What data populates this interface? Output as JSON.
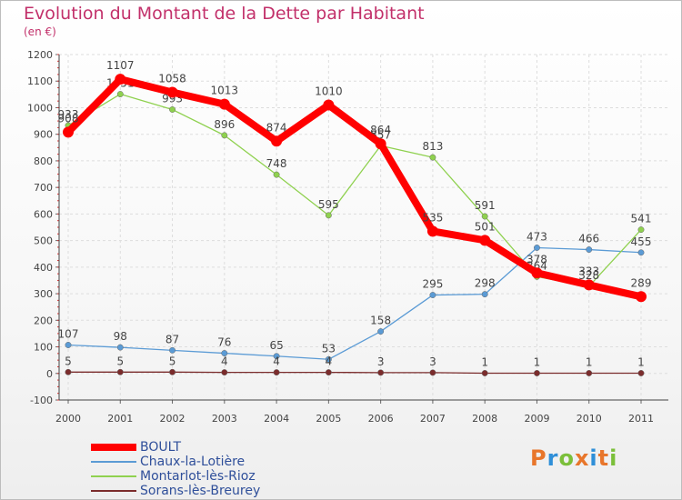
{
  "header": {
    "title": "Evolution du Montant de la Dette par Habitant",
    "subtitle": "(en €)"
  },
  "logo": {
    "text": "Proxiti"
  },
  "chart_data": {
    "type": "line",
    "title": "Evolution du Montant de la Dette par Habitant",
    "subtitle": "(en €)",
    "xlabel": "",
    "ylabel": "",
    "categories": [
      "2000",
      "2001",
      "2002",
      "2003",
      "2004",
      "2005",
      "2006",
      "2007",
      "2008",
      "2009",
      "2010",
      "2011"
    ],
    "y_ticks": [
      "-100",
      "0",
      "100",
      "200",
      "300",
      "400",
      "500",
      "600",
      "700",
      "800",
      "900",
      "1000",
      "1100",
      "1200"
    ],
    "ylim": [
      -100,
      1200
    ],
    "grid": true,
    "legend_position": "bottom-left",
    "series": [
      {
        "name": "BOULT",
        "color": "#ff0000",
        "values": [
          908,
          1107,
          1058,
          1013,
          874,
          1010,
          864,
          535,
          501,
          378,
          333,
          289
        ]
      },
      {
        "name": "Chaux-la-Lotière",
        "color": "#5b9bd5",
        "values": [
          107,
          98,
          87,
          76,
          65,
          53,
          158,
          295,
          298,
          473,
          466,
          455
        ]
      },
      {
        "name": "Montarlot-lès-Rioz",
        "color": "#8fd14f",
        "values": [
          933,
          1051,
          993,
          896,
          748,
          595,
          857,
          813,
          591,
          364,
          328,
          541
        ]
      },
      {
        "name": "Sorans-lès-Breurey",
        "color": "#7b2c2c",
        "values": [
          5,
          5,
          5,
          4,
          4,
          4,
          3,
          3,
          1,
          1,
          1,
          1
        ]
      }
    ]
  }
}
